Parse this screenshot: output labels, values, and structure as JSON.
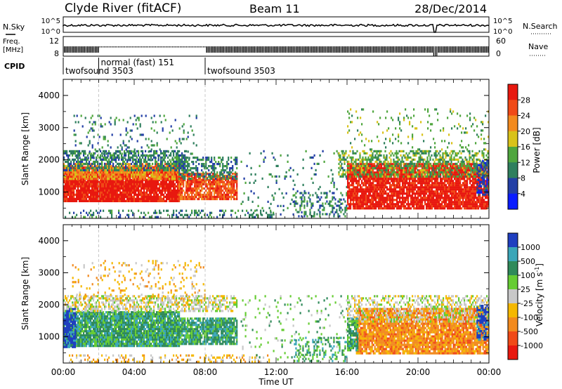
{
  "header": {
    "station": "Clyde River (fitACF)",
    "beam": "Beam 11",
    "date": "28/Dec/2014"
  },
  "status_panels": {
    "nsky_label": "N.Sky",
    "nsky_ticks": [
      "10^5",
      "10^0"
    ],
    "nsearch_label": "N.Search",
    "freq_label_1": "Freq.",
    "freq_label_2": "[MHz]",
    "freq_ticks": [
      "12",
      "8"
    ],
    "nave_label": "Nave",
    "nave_ticks": [
      "60",
      "0"
    ],
    "nsearch_ticks": [
      "10^5",
      "10^0"
    ],
    "cpid_label": "CPID",
    "cpid_segments": [
      {
        "name": "twofsound 3503",
        "start_hour": 0,
        "end_hour": 2
      },
      {
        "name": "normal (fast) 151",
        "start_hour": 2,
        "end_hour": 8
      },
      {
        "name": "twofsound 3503",
        "start_hour": 8,
        "end_hour": 24
      }
    ]
  },
  "chart_data": [
    {
      "type": "heatmap",
      "title": "",
      "xlabel": "Time UT",
      "ylabel": "Slant Range [km]",
      "xlim": [
        0,
        24
      ],
      "ylim": [
        180,
        4500
      ],
      "x_ticks": [
        "00:00",
        "04:00",
        "08:00",
        "12:00",
        "16:00",
        "20:00",
        "00:00"
      ],
      "y_ticks": [
        1000,
        2000,
        3000,
        4000
      ],
      "colorbar": {
        "label": "Power [dB]",
        "ticks": [
          "4",
          "8",
          "12",
          "16",
          "20",
          "24",
          "28"
        ],
        "colors": [
          "#0a1cff",
          "#233fa6",
          "#2f7f5e",
          "#4fa63e",
          "#d9c21a",
          "#f28a1e",
          "#f04a17",
          "#e8180f"
        ]
      },
      "regions": [
        {
          "t0": 0,
          "t1": 6.5,
          "r0": 700,
          "r1": 1800,
          "level": 7,
          "dens": 0.95
        },
        {
          "t0": 0,
          "t1": 6.5,
          "r0": 1400,
          "r1": 1900,
          "level": 5,
          "dens": 0.75
        },
        {
          "t0": 0,
          "t1": 7,
          "r0": 1700,
          "r1": 2300,
          "level": 2,
          "dens": 0.55
        },
        {
          "t0": 0.5,
          "t1": 7.5,
          "r0": 2000,
          "r1": 3400,
          "level": 2,
          "dens": 0.12
        },
        {
          "t0": 6.5,
          "t1": 9.8,
          "r0": 800,
          "r1": 1600,
          "level": 6,
          "dens": 0.85
        },
        {
          "t0": 6.5,
          "t1": 9.8,
          "r0": 1400,
          "r1": 2100,
          "level": 2,
          "dens": 0.5
        },
        {
          "t0": 0,
          "t1": 12,
          "r0": 180,
          "r1": 450,
          "level": 2,
          "dens": 0.25
        },
        {
          "t0": 10,
          "t1": 16,
          "r0": 300,
          "r1": 2300,
          "level": 2,
          "dens": 0.06
        },
        {
          "t0": 13,
          "t1": 16,
          "r0": 250,
          "r1": 1000,
          "level": 2,
          "dens": 0.3
        },
        {
          "t0": 16,
          "t1": 24,
          "r0": 500,
          "r1": 1900,
          "level": 7,
          "dens": 0.9
        },
        {
          "t0": 15.5,
          "t1": 24,
          "r0": 1500,
          "r1": 2300,
          "level": 3,
          "dens": 0.5
        },
        {
          "t0": 16,
          "t1": 24,
          "r0": 2300,
          "r1": 3600,
          "level": 3,
          "dens": 0.08
        },
        {
          "t0": 23.3,
          "t1": 24,
          "r0": 900,
          "r1": 2000,
          "level": 1,
          "dens": 0.6
        }
      ]
    },
    {
      "type": "heatmap",
      "title": "",
      "xlabel": "Time UT",
      "ylabel": "Slant Range [km]",
      "xlim": [
        0,
        24
      ],
      "ylim": [
        180,
        4500
      ],
      "x_ticks": [
        "00:00",
        "04:00",
        "08:00",
        "12:00",
        "16:00",
        "20:00",
        "00:00"
      ],
      "y_ticks": [
        1000,
        2000,
        3000,
        4000
      ],
      "colorbar": {
        "label": "Velocity [m s",
        "label_sup": "-1",
        "label_end": "]",
        "ticks": [
          "1000",
          "500",
          "100",
          "25",
          "-25",
          "-100",
          "-500",
          "-1000"
        ],
        "colors": [
          "#1f3fc0",
          "#3aa6b8",
          "#2f8a5a",
          "#66cc33",
          "#c8c8c8",
          "#f5b800",
          "#f28a1e",
          "#f04a17",
          "#e8180f"
        ]
      },
      "regions": [
        {
          "t0": 0,
          "t1": 6.5,
          "r0": 700,
          "r1": 1800,
          "level": 2,
          "dens": 0.95
        },
        {
          "t0": 0,
          "t1": 0.7,
          "r0": 700,
          "r1": 1900,
          "level": 0,
          "dens": 0.8
        },
        {
          "t0": 0,
          "t1": 9.8,
          "r0": 1800,
          "r1": 2300,
          "level": 4,
          "dens": 0.55
        },
        {
          "t0": 6.5,
          "t1": 9.8,
          "r0": 800,
          "r1": 1600,
          "level": 2,
          "dens": 0.85
        },
        {
          "t0": 0.5,
          "t1": 8,
          "r0": 2000,
          "r1": 3400,
          "level": 5,
          "dens": 0.12
        },
        {
          "t0": 0,
          "t1": 12,
          "r0": 180,
          "r1": 450,
          "level": 5,
          "dens": 0.25
        },
        {
          "t0": 10,
          "t1": 16,
          "r0": 300,
          "r1": 2300,
          "level": 3,
          "dens": 0.06
        },
        {
          "t0": 13,
          "t1": 16,
          "r0": 250,
          "r1": 1000,
          "level": 2,
          "dens": 0.3
        },
        {
          "t0": 16.5,
          "t1": 24,
          "r0": 500,
          "r1": 1900,
          "level": 6,
          "dens": 0.9
        },
        {
          "t0": 16,
          "t1": 16.6,
          "r0": 600,
          "r1": 1600,
          "level": 2,
          "dens": 0.8
        },
        {
          "t0": 16,
          "t1": 24,
          "r0": 1500,
          "r1": 2300,
          "level": 4,
          "dens": 0.45
        },
        {
          "t0": 23.3,
          "t1": 24,
          "r0": 900,
          "r1": 2000,
          "level": 0,
          "dens": 0.6
        }
      ]
    }
  ]
}
